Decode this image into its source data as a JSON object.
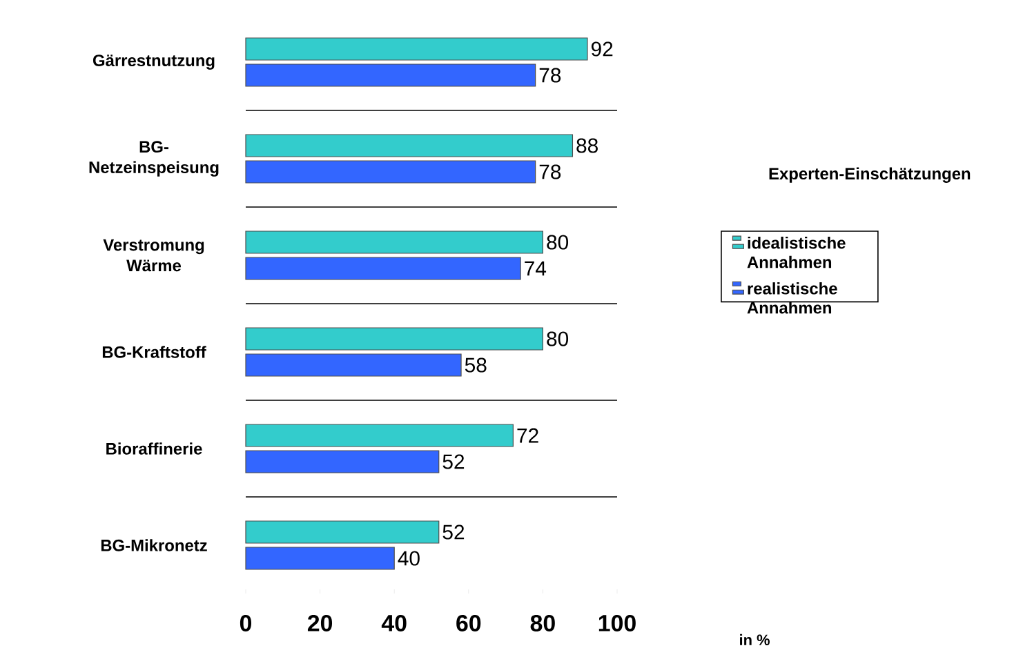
{
  "chart_data": {
    "type": "bar",
    "orientation": "horizontal",
    "categories": [
      "Gärrestnutzung",
      "BG-Netzeinspeisung",
      "Verstromung Wärme",
      "BG-Kraftstoff",
      "Bioraffinerie",
      "BG-Mikronetz"
    ],
    "series": [
      {
        "name": "idealistische Annahmen",
        "color": "#33cccc",
        "values": [
          92,
          88,
          80,
          80,
          72,
          52
        ]
      },
      {
        "name": "realistische Annahmen",
        "color": "#3366ff",
        "values": [
          78,
          78,
          74,
          58,
          52,
          40
        ]
      }
    ],
    "annotations": [
      "in %"
    ],
    "legend_title": "Experten-Einschätzungen",
    "xlim": [
      0,
      100
    ],
    "xticks": [
      0,
      20,
      40,
      60,
      80,
      100
    ],
    "data_labels": true,
    "grid": "y",
    "legend": "right"
  }
}
